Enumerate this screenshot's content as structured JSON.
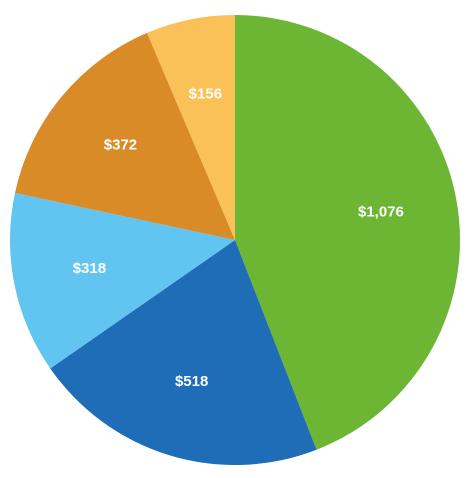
{
  "chart_data": {
    "type": "pie",
    "values": [
      1076,
      518,
      318,
      372,
      156
    ],
    "value_labels": [
      "$1,076",
      "$518",
      "$318",
      "$372",
      "$156"
    ],
    "colors": [
      "#6cb634",
      "#1e6db6",
      "#62c4f0",
      "#d98b27",
      "#f9c158"
    ]
  }
}
